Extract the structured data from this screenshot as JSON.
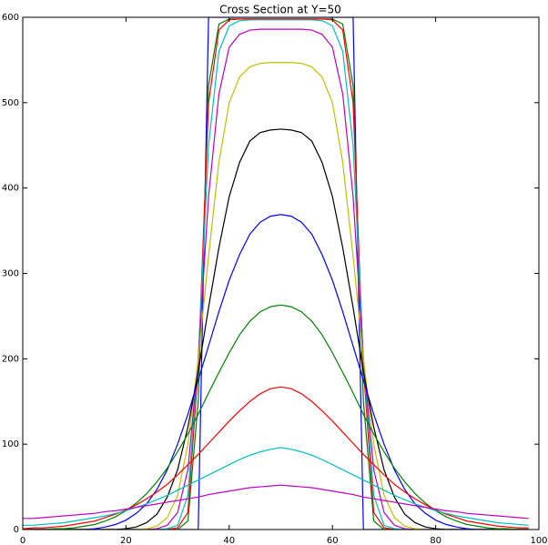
{
  "chart_data": {
    "type": "line",
    "title": "Cross Section at Y=50",
    "x": [
      0,
      2,
      4,
      6,
      8,
      10,
      12,
      14,
      16,
      18,
      20,
      22,
      24,
      26,
      28,
      30,
      32,
      34,
      36,
      38,
      40,
      42,
      44,
      46,
      48,
      50,
      52,
      54,
      56,
      58,
      60,
      62,
      64,
      66,
      68,
      70,
      72,
      74,
      76,
      78,
      80,
      82,
      84,
      86,
      88,
      90,
      92,
      94,
      96,
      98
    ],
    "series": [
      {
        "color": "#0000ff",
        "values": [
          0,
          0,
          0,
          0,
          0,
          0,
          0,
          0,
          0,
          0,
          0,
          0,
          0,
          0,
          0,
          0,
          0,
          0,
          600,
          600,
          600,
          600,
          600,
          600,
          600,
          600,
          600,
          600,
          600,
          600,
          600,
          600,
          600,
          0,
          0,
          0,
          0,
          0,
          0,
          0,
          0,
          0,
          0,
          0,
          0,
          0,
          0,
          0,
          0,
          0
        ]
      },
      {
        "color": "#008000",
        "values": [
          0,
          0,
          0,
          0,
          0,
          0,
          0,
          0,
          0,
          0,
          0,
          0,
          0,
          0,
          0,
          0,
          10,
          150,
          520,
          592,
          598,
          598,
          598,
          598,
          598,
          598,
          598,
          598,
          598,
          598,
          598,
          592,
          520,
          150,
          10,
          0,
          0,
          0,
          0,
          0,
          0,
          0,
          0,
          0,
          0,
          0,
          0,
          0,
          0,
          0
        ]
      },
      {
        "color": "#ff0000",
        "values": [
          0,
          0,
          0,
          0,
          0,
          0,
          0,
          0,
          0,
          0,
          0,
          0,
          0,
          0,
          0,
          2,
          20,
          190,
          500,
          585,
          597,
          598,
          598,
          598,
          598,
          598,
          598,
          598,
          598,
          598,
          597,
          585,
          500,
          190,
          20,
          2,
          0,
          0,
          0,
          0,
          0,
          0,
          0,
          0,
          0,
          0,
          0,
          0,
          0,
          0
        ]
      },
      {
        "color": "#00bfbf",
        "values": [
          0,
          0,
          0,
          0,
          0,
          0,
          0,
          0,
          0,
          0,
          0,
          0,
          0,
          0,
          1,
          5,
          40,
          200,
          450,
          560,
          590,
          596,
          597,
          597,
          597,
          597,
          597,
          597,
          597,
          596,
          590,
          560,
          450,
          200,
          40,
          5,
          1,
          0,
          0,
          0,
          0,
          0,
          0,
          0,
          0,
          0,
          0,
          0,
          0,
          0
        ]
      },
      {
        "color": "#bf00bf",
        "values": [
          0,
          0,
          0,
          0,
          0,
          0,
          0,
          0,
          0,
          0,
          0,
          0,
          0,
          1,
          5,
          20,
          70,
          200,
          390,
          510,
          565,
          580,
          585,
          586,
          586,
          586,
          586,
          586,
          585,
          580,
          565,
          510,
          390,
          200,
          70,
          20,
          5,
          1,
          0,
          0,
          0,
          0,
          0,
          0,
          0,
          0,
          0,
          0,
          0,
          0
        ]
      },
      {
        "color": "#bfbf00",
        "values": [
          0,
          0,
          0,
          0,
          0,
          0,
          0,
          0,
          0,
          0,
          0,
          0,
          1,
          4,
          14,
          40,
          100,
          200,
          320,
          430,
          500,
          530,
          542,
          546,
          547,
          547,
          547,
          546,
          542,
          530,
          500,
          430,
          320,
          200,
          100,
          40,
          14,
          4,
          1,
          0,
          0,
          0,
          0,
          0,
          0,
          0,
          0,
          0,
          0,
          0
        ]
      },
      {
        "color": "#000000",
        "values": [
          0,
          0,
          0,
          0,
          0,
          0,
          0,
          0,
          0,
          0,
          1,
          3,
          8,
          18,
          38,
          70,
          120,
          185,
          260,
          330,
          390,
          430,
          455,
          465,
          468,
          469,
          468,
          465,
          455,
          430,
          390,
          330,
          260,
          185,
          120,
          70,
          38,
          18,
          8,
          3,
          1,
          0,
          0,
          0,
          0,
          0,
          0,
          0,
          0,
          0
        ]
      },
      {
        "color": "#0000ff",
        "values": [
          0,
          0,
          0,
          0,
          0,
          0,
          0,
          1,
          3,
          6,
          11,
          19,
          30,
          47,
          70,
          100,
          135,
          175,
          215,
          255,
          292,
          322,
          346,
          360,
          367,
          369,
          367,
          360,
          346,
          322,
          292,
          255,
          215,
          175,
          135,
          100,
          70,
          47,
          30,
          19,
          11,
          6,
          3,
          1,
          0,
          0,
          0,
          0,
          0,
          0
        ]
      },
      {
        "color": "#008000",
        "values": [
          0,
          0,
          0,
          1,
          1,
          2,
          4,
          6,
          10,
          15,
          22,
          31,
          42,
          56,
          72,
          91,
          112,
          135,
          160,
          184,
          207,
          228,
          244,
          255,
          261,
          263,
          261,
          255,
          244,
          228,
          207,
          184,
          160,
          135,
          112,
          91,
          72,
          56,
          42,
          31,
          22,
          15,
          10,
          6,
          4,
          2,
          1,
          1,
          0,
          0
        ]
      },
      {
        "color": "#ff0000",
        "values": [
          1,
          2,
          2,
          3,
          4,
          6,
          8,
          10,
          14,
          18,
          23,
          29,
          36,
          44,
          53,
          64,
          76,
          88,
          101,
          114,
          127,
          139,
          150,
          159,
          165,
          167,
          165,
          159,
          150,
          139,
          127,
          114,
          101,
          88,
          76,
          64,
          53,
          44,
          36,
          29,
          23,
          18,
          14,
          10,
          8,
          6,
          4,
          3,
          2,
          2
        ]
      },
      {
        "color": "#00bfbf",
        "values": [
          5,
          5,
          6,
          7,
          8,
          10,
          12,
          14,
          16,
          19,
          22,
          26,
          30,
          35,
          40,
          46,
          52,
          58,
          64,
          70,
          76,
          82,
          87,
          91,
          94,
          96,
          94,
          91,
          87,
          82,
          76,
          70,
          64,
          58,
          52,
          46,
          40,
          35,
          30,
          26,
          22,
          19,
          16,
          14,
          12,
          10,
          8,
          7,
          6,
          5
        ]
      },
      {
        "color": "#bf00bf",
        "values": [
          13,
          13,
          14,
          15,
          16,
          17,
          18,
          19,
          21,
          22,
          24,
          26,
          28,
          30,
          32,
          34,
          36,
          38,
          41,
          43,
          45,
          47,
          49,
          50,
          51,
          52,
          51,
          50,
          49,
          47,
          45,
          43,
          41,
          38,
          36,
          34,
          32,
          30,
          28,
          26,
          24,
          22,
          21,
          19,
          18,
          17,
          16,
          15,
          14,
          13
        ]
      }
    ],
    "xlim": [
      0,
      100
    ],
    "xticks": [
      0,
      20,
      40,
      60,
      80,
      100
    ],
    "ylim": [
      0,
      600
    ],
    "yticks": [
      0,
      100,
      200,
      300,
      400,
      500,
      600
    ],
    "grid": false
  }
}
